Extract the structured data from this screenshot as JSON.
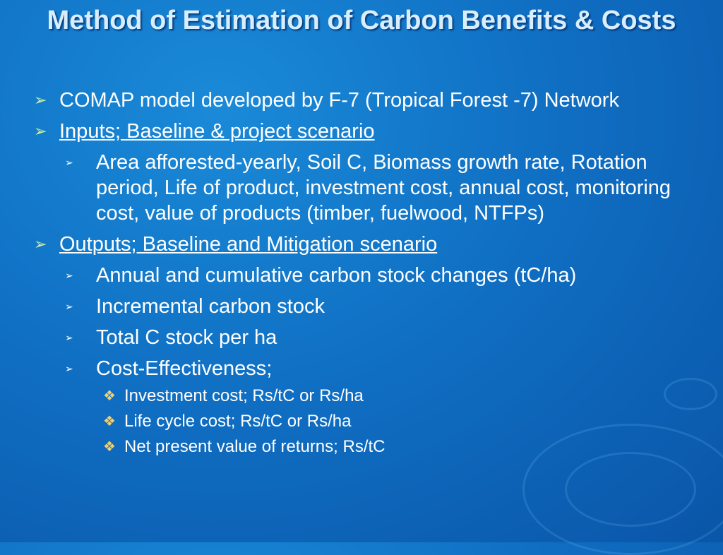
{
  "title": "Method of Estimation of Carbon Benefits & Costs",
  "items": [
    {
      "text": "COMAP model developed by F-7 (Tropical Forest -7) Network"
    },
    {
      "text": "Inputs; Baseline & project scenario",
      "children": [
        {
          "text": "Area afforested-yearly, Soil C, Biomass growth rate, Rotation period, Life of product, investment cost, annual cost, monitoring cost, value of products (timber, fuelwood, NTFPs)"
        }
      ]
    },
    {
      "text": "Outputs; Baseline and Mitigation scenario",
      "children": [
        {
          "text": "Annual and cumulative carbon stock changes (tC/ha)"
        },
        {
          "text": "Incremental carbon stock"
        },
        {
          "text": "Total C stock per ha"
        },
        {
          "text": "Cost-Effectiveness;",
          "children": [
            {
              "text": "Investment cost; Rs/tC or Rs/ha"
            },
            {
              "text": "Life cycle cost; Rs/tC or Rs/ha"
            },
            {
              "text": "Net present value of returns; Rs/tC"
            }
          ]
        }
      ]
    }
  ]
}
